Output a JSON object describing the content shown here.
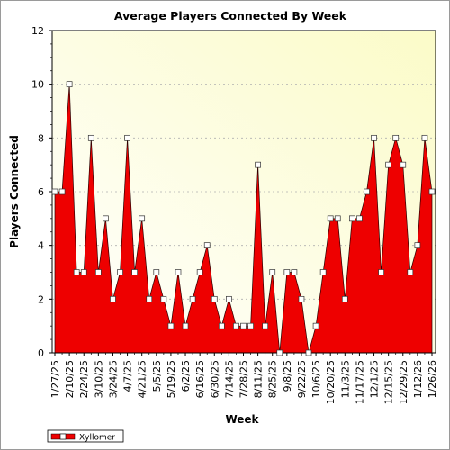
{
  "chart_data": {
    "type": "area",
    "title": "Average Players Connected By Week",
    "xlabel": "Week",
    "ylabel": "Players Connected",
    "ylim": [
      0,
      12
    ],
    "y_ticks": [
      0,
      2,
      4,
      6,
      8,
      10,
      12
    ],
    "grid": true,
    "legend_position": "bottom-left",
    "x_tick_labels": [
      "1/27/25",
      "2/10/25",
      "2/24/25",
      "3/10/25",
      "3/24/25",
      "4/7/25",
      "4/21/25",
      "5/5/25",
      "5/19/25",
      "6/2/25",
      "6/16/25",
      "6/30/25",
      "7/14/25",
      "7/28/25",
      "8/11/25",
      "8/25/25",
      "9/8/25",
      "9/22/25",
      "10/6/25",
      "10/20/25",
      "11/3/25",
      "11/17/25",
      "12/1/25",
      "12/15/25",
      "12/29/25",
      "1/12/26",
      "1/26/26"
    ],
    "series": [
      {
        "name": "Xyllomer",
        "color": "#ee0000",
        "x": [
          "1/27/25",
          "2/3/25",
          "2/10/25",
          "2/17/25",
          "2/24/25",
          "3/3/25",
          "3/10/25",
          "3/17/25",
          "3/24/25",
          "3/31/25",
          "4/7/25",
          "4/14/25",
          "4/21/25",
          "4/28/25",
          "5/5/25",
          "5/12/25",
          "5/19/25",
          "5/26/25",
          "6/2/25",
          "6/9/25",
          "6/16/25",
          "6/23/25",
          "6/30/25",
          "7/7/25",
          "7/14/25",
          "7/21/25",
          "7/28/25",
          "8/4/25",
          "8/11/25",
          "8/18/25",
          "8/25/25",
          "9/1/25",
          "9/8/25",
          "9/15/25",
          "9/22/25",
          "9/29/25",
          "10/6/25",
          "10/13/25",
          "10/20/25",
          "10/27/25",
          "11/3/25",
          "11/10/25",
          "11/17/25",
          "11/24/25",
          "12/1/25",
          "12/8/25",
          "12/15/25",
          "12/22/25",
          "12/29/25",
          "1/5/26",
          "1/12/26",
          "1/19/26",
          "1/26/26"
        ],
        "values": [
          6,
          6,
          10,
          3,
          3,
          8,
          3,
          5,
          2,
          3,
          8,
          3,
          5,
          2,
          3,
          2,
          1,
          3,
          1,
          2,
          3,
          4,
          2,
          1,
          2,
          1,
          1,
          1,
          7,
          1,
          3,
          0,
          3,
          3,
          2,
          0,
          1,
          3,
          5,
          5,
          2,
          5,
          5,
          6,
          8,
          3,
          7,
          8,
          7,
          3,
          4,
          8,
          6
        ]
      }
    ]
  }
}
